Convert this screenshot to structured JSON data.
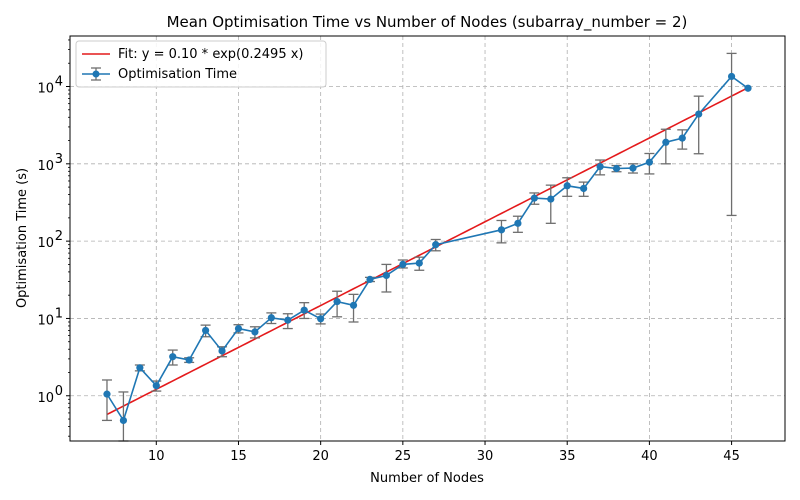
{
  "chart_data": {
    "type": "line",
    "title": "Mean Optimisation Time vs Number of Nodes (subarray_number = 2)",
    "xlabel": "Number of Nodes",
    "ylabel": "Optimisation Time (s)",
    "x_ticks": [
      "10",
      "15",
      "20",
      "25",
      "30",
      "35",
      "40",
      "45"
    ],
    "y_ticks": [
      {
        "label": "10",
        "exp": "0"
      },
      {
        "label": "10",
        "exp": "1"
      },
      {
        "label": "10",
        "exp": "2"
      },
      {
        "label": "10",
        "exp": "3"
      },
      {
        "label": "10",
        "exp": "4"
      }
    ],
    "xlim": [
      4.75,
      48.25
    ],
    "ylim": [
      0.26,
      45000
    ],
    "y_scale": "log",
    "grid": true,
    "legend_position": "top-left",
    "series": [
      {
        "name": "Optimisation Time",
        "color": "#1f77b4",
        "errorbar_color": "#6e6e6e",
        "marker": "circle",
        "points": [
          {
            "x": 7,
            "y": 1.05,
            "lo": 0.48,
            "hi": 1.6
          },
          {
            "x": 8,
            "y": 0.48,
            "lo": 0.26,
            "hi": 1.12
          },
          {
            "x": 9,
            "y": 2.3,
            "lo": 2.1,
            "hi": 2.5
          },
          {
            "x": 10,
            "y": 1.35,
            "lo": 1.15,
            "hi": 1.55
          },
          {
            "x": 11,
            "y": 3.2,
            "lo": 2.5,
            "hi": 3.9
          },
          {
            "x": 12,
            "y": 2.9,
            "lo": 2.7,
            "hi": 3.1
          },
          {
            "x": 13,
            "y": 7.0,
            "lo": 5.8,
            "hi": 8.2
          },
          {
            "x": 14,
            "y": 3.8,
            "lo": 3.2,
            "hi": 4.3
          },
          {
            "x": 15,
            "y": 7.4,
            "lo": 6.5,
            "hi": 8.3
          },
          {
            "x": 16,
            "y": 6.7,
            "lo": 5.6,
            "hi": 7.8
          },
          {
            "x": 17,
            "y": 10.2,
            "lo": 8.6,
            "hi": 11.8
          },
          {
            "x": 18,
            "y": 9.5,
            "lo": 7.4,
            "hi": 11.5
          },
          {
            "x": 19,
            "y": 12.8,
            "lo": 10.0,
            "hi": 16.0
          },
          {
            "x": 20,
            "y": 9.9,
            "lo": 8.5,
            "hi": 11.4
          },
          {
            "x": 21,
            "y": 16.5,
            "lo": 10.5,
            "hi": 22.5
          },
          {
            "x": 22,
            "y": 14.8,
            "lo": 9.0,
            "hi": 20.5
          },
          {
            "x": 23,
            "y": 32.0,
            "lo": 30.0,
            "hi": 34.0
          },
          {
            "x": 24,
            "y": 36.0,
            "lo": 22.0,
            "hi": 50.0
          },
          {
            "x": 25,
            "y": 50.0,
            "lo": 45.0,
            "hi": 57.0
          },
          {
            "x": 26,
            "y": 52.0,
            "lo": 42.0,
            "hi": 62.0
          },
          {
            "x": 27,
            "y": 90.0,
            "lo": 75.0,
            "hi": 105.0
          },
          {
            "x": 31,
            "y": 140.0,
            "lo": 95.0,
            "hi": 185.0
          },
          {
            "x": 32,
            "y": 170.0,
            "lo": 130.0,
            "hi": 210.0
          },
          {
            "x": 33,
            "y": 360.0,
            "lo": 300.0,
            "hi": 420.0
          },
          {
            "x": 34,
            "y": 350.0,
            "lo": 170.0,
            "hi": 530.0
          },
          {
            "x": 35,
            "y": 520.0,
            "lo": 380.0,
            "hi": 660.0
          },
          {
            "x": 36,
            "y": 480.0,
            "lo": 380.0,
            "hi": 580.0
          },
          {
            "x": 37,
            "y": 920.0,
            "lo": 720.0,
            "hi": 1120.0
          },
          {
            "x": 38,
            "y": 870.0,
            "lo": 790.0,
            "hi": 950.0
          },
          {
            "x": 39,
            "y": 880.0,
            "lo": 760.0,
            "hi": 1000.0
          },
          {
            "x": 40,
            "y": 1050.0,
            "lo": 740.0,
            "hi": 1360.0
          },
          {
            "x": 41,
            "y": 1900.0,
            "lo": 1000.0,
            "hi": 2800.0
          },
          {
            "x": 42,
            "y": 2150.0,
            "lo": 1550.0,
            "hi": 2750.0
          },
          {
            "x": 43,
            "y": 4400.0,
            "lo": 1350.0,
            "hi": 7500.0
          },
          {
            "x": 45,
            "y": 13500.0,
            "lo": 215.0,
            "hi": 26800.0
          },
          {
            "x": 46,
            "y": 9500.0,
            "lo": null,
            "hi": null
          }
        ]
      },
      {
        "name": "Fit: y = 0.10 * exp(0.2495 x)",
        "color": "#e41a1c",
        "type": "fit",
        "a": 0.1,
        "b": 0.2495,
        "x_range": [
          7,
          46
        ]
      }
    ]
  }
}
